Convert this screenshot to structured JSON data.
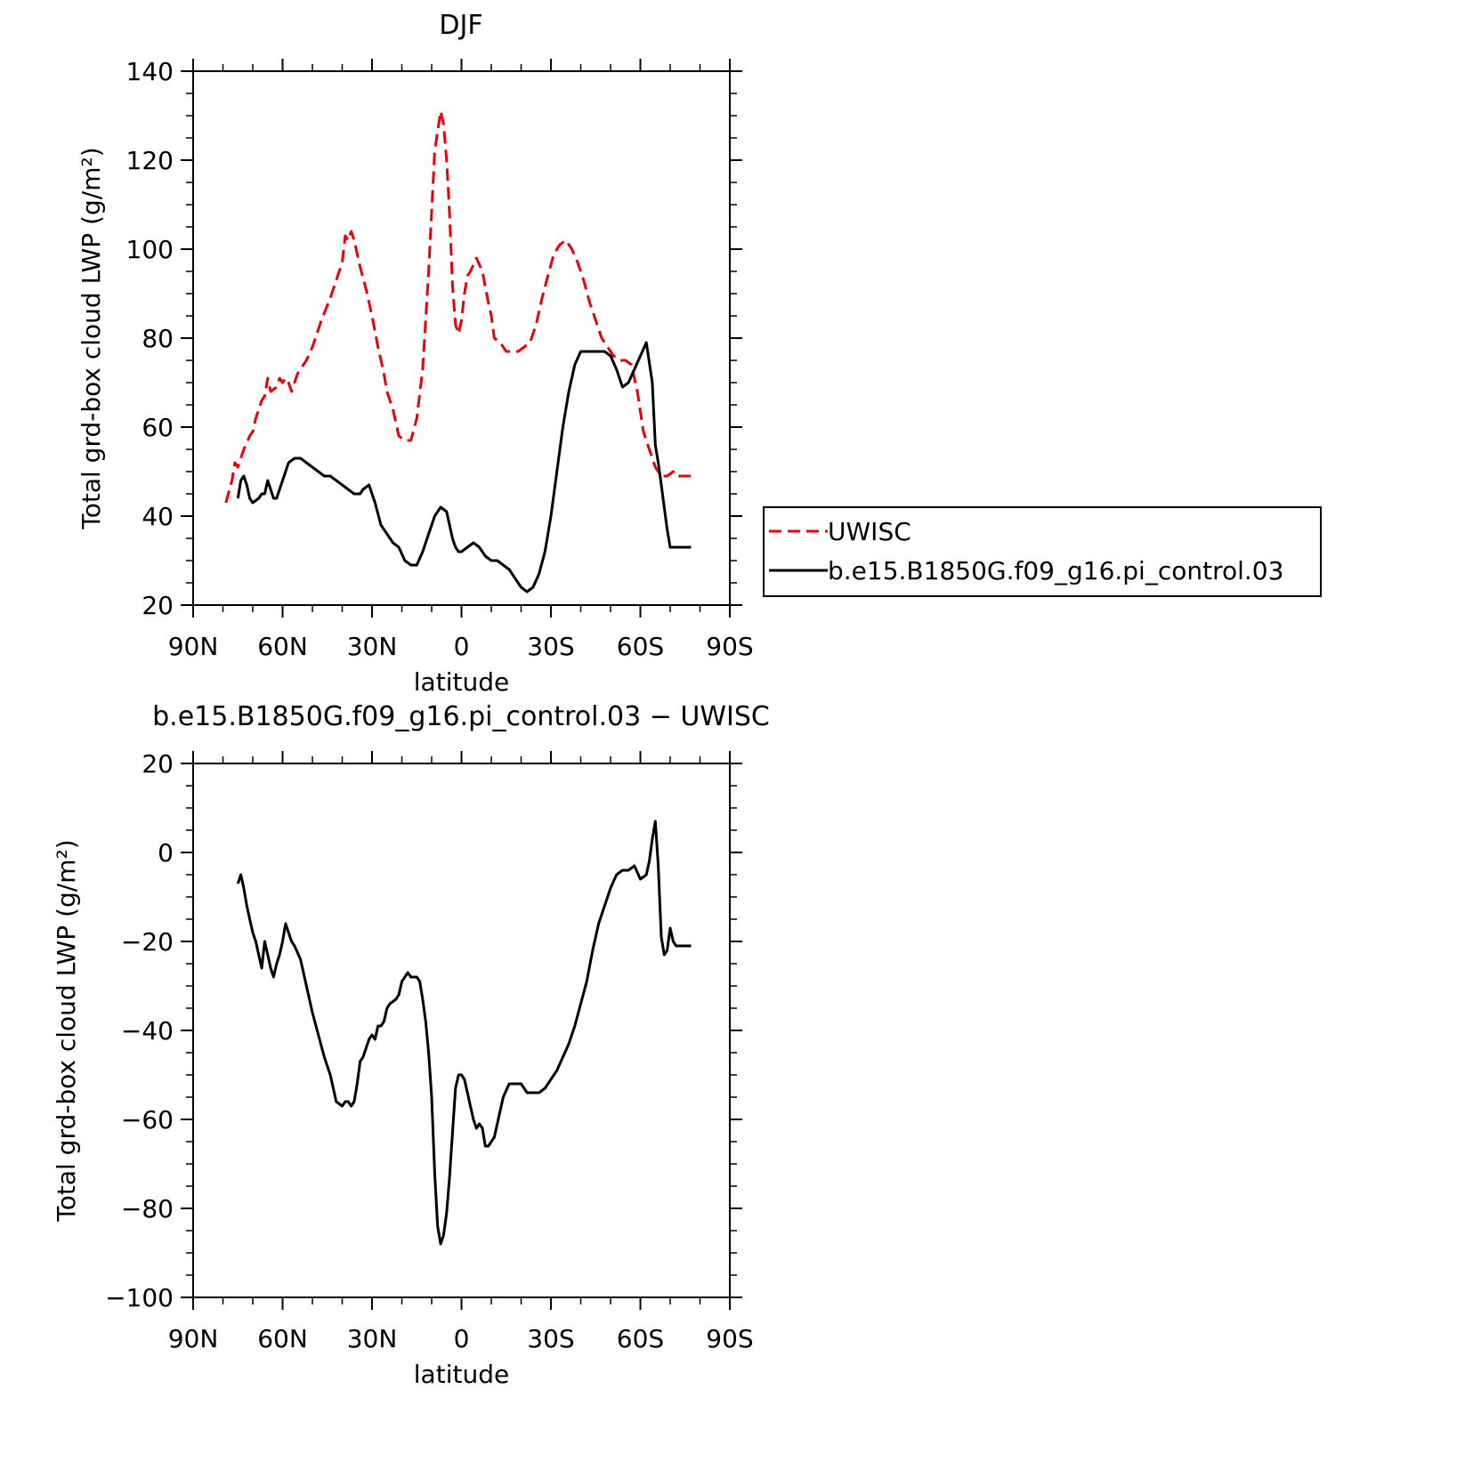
{
  "chart_data": [
    {
      "type": "line",
      "title": "DJF",
      "xlabel": "latitude",
      "ylabel": "Total grd-box cloud LWP (g/m²)",
      "xlim": [
        -90,
        90
      ],
      "ylim": [
        20,
        140
      ],
      "x_ticks": [
        -90,
        -60,
        -30,
        0,
        30,
        60,
        90
      ],
      "x_tick_labels": [
        "90N",
        "60N",
        "30N",
        "0",
        "30S",
        "60S",
        "90S"
      ],
      "y_ticks": [
        20,
        40,
        60,
        80,
        100,
        120,
        140
      ],
      "y_tick_labels": [
        "20",
        "40",
        "60",
        "80",
        "100",
        "120",
        "140"
      ],
      "legend_placement": "right",
      "series": [
        {
          "name": "UWISC",
          "color": "#e8000b",
          "dash": "dashed",
          "x": [
            -79,
            -77,
            -76,
            -75,
            -73,
            -71,
            -70,
            -69,
            -67,
            -66,
            -65,
            -64,
            -62,
            -61,
            -60,
            -59,
            -58,
            -57,
            -55,
            -52,
            -50,
            -47,
            -44,
            -42,
            -40,
            -39,
            -38,
            -37,
            -36,
            -34,
            -32,
            -30,
            -28,
            -26,
            -25,
            -23,
            -21,
            -19,
            -17,
            -15,
            -13,
            -11,
            -9,
            -7,
            -6,
            -5,
            -4,
            -3,
            -2,
            -1,
            0,
            1,
            2,
            3,
            5,
            7,
            9,
            10,
            11,
            13,
            15,
            17,
            19,
            21,
            23,
            25,
            27,
            29,
            31,
            33,
            35,
            37,
            39,
            41,
            43,
            45,
            47,
            49,
            51,
            53,
            55,
            57,
            59,
            61,
            63,
            65,
            67,
            69,
            71,
            72,
            73,
            74,
            76,
            77,
            78
          ],
          "y": [
            43,
            48,
            52,
            51,
            55,
            58,
            59,
            62,
            66,
            67,
            71,
            68,
            69,
            71,
            70,
            71,
            70,
            68,
            72,
            75,
            78,
            84,
            89,
            93,
            97,
            103,
            102,
            104,
            102,
            96,
            91,
            85,
            78,
            72,
            68,
            64,
            58,
            57,
            57,
            62,
            73,
            95,
            122,
            131,
            128,
            120,
            108,
            92,
            83,
            81,
            84,
            90,
            94,
            95,
            98,
            95,
            88,
            85,
            80,
            79,
            77,
            77,
            77,
            78,
            79,
            83,
            89,
            94,
            99,
            101,
            102,
            100,
            97,
            93,
            88,
            84,
            80,
            78,
            76,
            75,
            75,
            74,
            68,
            59,
            55,
            51,
            49,
            49,
            50,
            49,
            49,
            49,
            49,
            49,
            49
          ]
        },
        {
          "name": "b.e15.B1850G.f09_g16.pi_control.03",
          "color": "#000000",
          "dash": "solid",
          "x": [
            -75,
            -74,
            -73,
            -72,
            -71,
            -70,
            -68,
            -67,
            -66,
            -65,
            -64,
            -63,
            -62,
            -61,
            -60,
            -58,
            -56,
            -54,
            -52,
            -50,
            -48,
            -46,
            -44,
            -42,
            -40,
            -38,
            -36,
            -34,
            -33,
            -31,
            -29,
            -27,
            -25,
            -23,
            -21,
            -19,
            -17,
            -15,
            -13,
            -11,
            -9,
            -7,
            -5,
            -4,
            -3,
            -2,
            -1,
            0,
            2,
            4,
            6,
            8,
            10,
            12,
            14,
            16,
            18,
            20,
            22,
            24,
            26,
            28,
            30,
            32,
            34,
            36,
            38,
            40,
            42,
            44,
            46,
            48,
            50,
            52,
            54,
            56,
            58,
            60,
            62,
            64,
            65,
            66,
            67,
            68,
            69,
            70,
            71,
            72,
            73,
            74,
            75,
            76,
            77
          ],
          "y": [
            44,
            48,
            49,
            47,
            44,
            43,
            44,
            45,
            45,
            48,
            46,
            44,
            44,
            46,
            48,
            52,
            53,
            53,
            52,
            51,
            50,
            49,
            49,
            48,
            47,
            46,
            45,
            45,
            46,
            47,
            43,
            38,
            36,
            34,
            33,
            30,
            29,
            29,
            32,
            36,
            40,
            42,
            41,
            38,
            35,
            33,
            32,
            32,
            33,
            34,
            33,
            31,
            30,
            30,
            29,
            28,
            26,
            24,
            23,
            24,
            27,
            32,
            40,
            50,
            60,
            68,
            74,
            77,
            77,
            77,
            77,
            77,
            76,
            73,
            69,
            70,
            73,
            76,
            79,
            70,
            56,
            52,
            47,
            42,
            37,
            33,
            33,
            33,
            33,
            33,
            33,
            33,
            33
          ]
        }
      ]
    },
    {
      "type": "line",
      "title": "b.e15.B1850G.f09_g16.pi_control.03 − UWISC",
      "xlabel": "latitude",
      "ylabel": "Total grd-box cloud LWP (g/m²)",
      "xlim": [
        -90,
        90
      ],
      "ylim": [
        -100,
        20
      ],
      "x_ticks": [
        -90,
        -60,
        -30,
        0,
        30,
        60,
        90
      ],
      "x_tick_labels": [
        "90N",
        "60N",
        "30N",
        "0",
        "30S",
        "60S",
        "90S"
      ],
      "y_ticks": [
        -100,
        -80,
        -60,
        -40,
        -20,
        0,
        20
      ],
      "y_tick_labels": [
        "−100",
        "−80",
        "−60",
        "−40",
        "−20",
        "0",
        "20"
      ],
      "series": [
        {
          "color": "#000000",
          "dash": "solid",
          "x": [
            -75,
            -74,
            -73,
            -72,
            -71,
            -70,
            -69,
            -68,
            -67,
            -66,
            -65,
            -64,
            -63,
            -62,
            -61,
            -60,
            -59,
            -58,
            -57,
            -56,
            -54,
            -52,
            -50,
            -48,
            -46,
            -44,
            -42,
            -40,
            -39,
            -38,
            -37,
            -36,
            -35,
            -34,
            -33,
            -31,
            -30,
            -29,
            -28,
            -27,
            -26,
            -25,
            -24,
            -22,
            -21,
            -20,
            -19,
            -18,
            -17,
            -16,
            -15,
            -14,
            -13,
            -12,
            -11,
            -10,
            -9,
            -8,
            -7,
            -6,
            -5,
            -4,
            -3,
            -2,
            -1,
            0,
            1,
            2,
            3,
            4,
            5,
            6,
            7,
            8,
            9,
            10,
            11,
            12,
            14,
            16,
            18,
            20,
            22,
            24,
            26,
            28,
            30,
            32,
            34,
            36,
            38,
            40,
            42,
            44,
            46,
            48,
            50,
            52,
            54,
            56,
            58,
            60,
            62,
            63,
            64,
            65,
            66,
            67,
            68,
            69,
            70,
            71,
            72,
            73,
            74,
            75,
            76,
            77
          ],
          "y": [
            -7,
            -5,
            -8,
            -12,
            -15,
            -18,
            -20,
            -23,
            -26,
            -20,
            -23,
            -26,
            -28,
            -25,
            -23,
            -20,
            -16,
            -18,
            -20,
            -21,
            -24,
            -30,
            -36,
            -41,
            -46,
            -50,
            -56,
            -57,
            -56,
            -56,
            -57,
            -56,
            -52,
            -47,
            -46,
            -42,
            -41,
            -42,
            -39,
            -39,
            -38,
            -35,
            -34,
            -33,
            -32,
            -29,
            -28,
            -27,
            -28,
            -28,
            -28,
            -29,
            -33,
            -38,
            -45,
            -55,
            -72,
            -84,
            -88,
            -86,
            -81,
            -73,
            -63,
            -53,
            -50,
            -50,
            -51,
            -54,
            -57,
            -60,
            -62,
            -61,
            -62,
            -66,
            -66,
            -65,
            -64,
            -61,
            -55,
            -52,
            -52,
            -52,
            -54,
            -54,
            -54,
            -53,
            -51,
            -49,
            -46,
            -43,
            -39,
            -34,
            -29,
            -22,
            -16,
            -12,
            -8,
            -5,
            -4,
            -4,
            -3,
            -6,
            -5,
            -2,
            3,
            7,
            -3,
            -19,
            -23,
            -22,
            -17,
            -20,
            -21,
            -21,
            -21,
            -21,
            -21,
            -21
          ]
        }
      ]
    }
  ]
}
